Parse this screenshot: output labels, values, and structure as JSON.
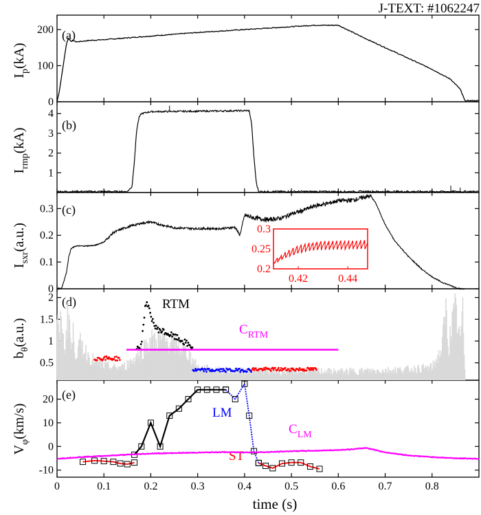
{
  "figure": {
    "shot_label": "J-TEXT: #1062247",
    "x_axis": {
      "label": "time (s)",
      "range": [
        0,
        0.9
      ],
      "ticks": [
        "0",
        "0.1",
        "0.2",
        "0.3",
        "0.4",
        "0.5",
        "0.6",
        "0.7",
        "0.8"
      ]
    },
    "colors": {
      "black": "#000000",
      "red": "#ff0000",
      "blue": "#0000ff",
      "magenta": "#ff00ff",
      "gray": "#d9d9d9"
    }
  },
  "chart_data": [
    {
      "panel": "(a)",
      "type": "line",
      "ylabel_main": "I",
      "ylabel_sub": "p",
      "ylabel_unit": "(kA)",
      "ylim": [
        0,
        240
      ],
      "yticks": [
        "0",
        "100",
        "200"
      ],
      "series": [
        {
          "color": "#000000",
          "x": [
            0.0,
            0.005,
            0.012,
            0.02,
            0.024,
            0.03,
            0.035,
            0.04,
            0.05,
            0.07,
            0.1,
            0.2,
            0.3,
            0.4,
            0.5,
            0.55,
            0.6,
            0.65,
            0.7,
            0.75,
            0.8,
            0.84,
            0.86,
            0.87,
            0.9
          ],
          "y": [
            0,
            30,
            90,
            160,
            175,
            168,
            170,
            166,
            167,
            170,
            172,
            182,
            192,
            200,
            208,
            212,
            212,
            180,
            150,
            120,
            90,
            62,
            35,
            3,
            3
          ]
        }
      ]
    },
    {
      "panel": "(b)",
      "type": "line",
      "ylabel_main": "I",
      "ylabel_sub": "rmp",
      "ylabel_unit": "(kA)",
      "ylim": [
        0,
        4.6
      ],
      "yticks": [
        "1",
        "2",
        "3",
        "4"
      ],
      "series": [
        {
          "color": "#000000",
          "x": [
            0.0,
            0.15,
            0.16,
            0.165,
            0.17,
            0.175,
            0.18,
            0.19,
            0.2,
            0.3,
            0.41,
            0.415,
            0.42,
            0.425,
            0.43,
            0.9
          ],
          "y": [
            0.05,
            0.05,
            0.3,
            1.6,
            3.2,
            3.8,
            4.0,
            4.05,
            4.1,
            4.12,
            4.15,
            3.5,
            1.8,
            0.5,
            0.05,
            0.05
          ]
        }
      ]
    },
    {
      "panel": "(c)",
      "type": "line",
      "ylabel_main": "I",
      "ylabel_sub": "sxr",
      "ylabel_unit": "(a.u.)",
      "ylim": [
        0,
        0.36
      ],
      "yticks": [
        "0",
        "0.1",
        "0.2",
        "0.3"
      ],
      "series": [
        {
          "color": "#000000",
          "x": [
            0.0,
            0.01,
            0.02,
            0.025,
            0.03,
            0.04,
            0.06,
            0.08,
            0.1,
            0.12,
            0.14,
            0.16,
            0.18,
            0.2,
            0.22,
            0.25,
            0.3,
            0.35,
            0.38,
            0.39,
            0.4,
            0.42,
            0.45,
            0.48,
            0.5,
            0.52,
            0.55,
            0.58,
            0.6,
            0.62,
            0.64,
            0.66,
            0.67,
            0.68,
            0.7,
            0.72,
            0.75,
            0.78,
            0.8,
            0.82,
            0.85,
            0.86,
            0.87
          ],
          "y": [
            0,
            0.003,
            0.06,
            0.12,
            0.15,
            0.16,
            0.16,
            0.162,
            0.175,
            0.21,
            0.225,
            0.236,
            0.245,
            0.25,
            0.24,
            0.228,
            0.225,
            0.225,
            0.23,
            0.2,
            0.275,
            0.265,
            0.258,
            0.265,
            0.28,
            0.29,
            0.31,
            0.32,
            0.33,
            0.33,
            0.335,
            0.345,
            0.345,
            0.32,
            0.24,
            0.18,
            0.12,
            0.07,
            0.045,
            0.025,
            0.005,
            0.0,
            0.0
          ]
        }
      ],
      "inset": {
        "type": "line",
        "color": "#ff0000",
        "xlim": [
          0.41,
          0.448
        ],
        "ylim": [
          0.2,
          0.3
        ],
        "xticks": [
          "0.42",
          "0.44"
        ],
        "yticks": [
          "0.2",
          "0.25",
          "0.3"
        ],
        "trend": {
          "x": [
            0.41,
            0.415,
            0.42,
            0.425,
            0.43,
            0.448
          ],
          "y": [
            0.215,
            0.235,
            0.248,
            0.255,
            0.258,
            0.26
          ]
        },
        "sawtooth_period": 0.0016,
        "sawtooth_amplitude": 0.022
      }
    },
    {
      "panel": "(d)",
      "type": "scatter",
      "ylabel_main": "b",
      "ylabel_sub": "θ",
      "ylabel_unit": "(a.u.)",
      "ylim": [
        0.1,
        2.2
      ],
      "yticks": [
        "0.5",
        "1",
        "1.5",
        "2"
      ],
      "annotations": {
        "rtm": "RTM",
        "c_rtm_main": "C",
        "c_rtm_sub": "RTM"
      },
      "background_spectrum": {
        "color": "#d9d9d9",
        "x": [
          0.0,
          0.005,
          0.01,
          0.015,
          0.02,
          0.025,
          0.03,
          0.035,
          0.04,
          0.05,
          0.06,
          0.07,
          0.08,
          0.09,
          0.1,
          0.12,
          0.14,
          0.16,
          0.18,
          0.2,
          0.22,
          0.25,
          0.28,
          0.3,
          0.35,
          0.4,
          0.45,
          0.5,
          0.55,
          0.6,
          0.65,
          0.7,
          0.75,
          0.8,
          0.82,
          0.83,
          0.835,
          0.84,
          0.85,
          0.86,
          0.865,
          0.87
        ],
        "y": [
          2.0,
          1.2,
          2.2,
          0.9,
          1.6,
          2.3,
          1.0,
          1.5,
          0.9,
          1.2,
          1.0,
          0.8,
          0.7,
          0.6,
          0.55,
          0.5,
          0.5,
          0.7,
          1.0,
          1.3,
          1.3,
          1.2,
          0.9,
          0.5,
          0.42,
          0.4,
          0.38,
          0.38,
          0.4,
          0.38,
          0.4,
          0.42,
          0.45,
          0.5,
          1.0,
          2.2,
          1.0,
          1.6,
          2.2,
          1.2,
          2.2,
          0.5
        ]
      },
      "series": [
        {
          "color": "#ff0000",
          "x_range": [
            0.08,
            0.135
          ],
          "base": 0.6,
          "jitter": 0.05
        },
        {
          "color": "#000000",
          "x_range": [
            0.17,
            0.29
          ],
          "trend_x": [
            0.17,
            0.18,
            0.185,
            0.19,
            0.2,
            0.21,
            0.23,
            0.26,
            0.29
          ],
          "trend_y": [
            0.8,
            0.9,
            1.5,
            1.9,
            1.6,
            1.3,
            1.2,
            1.05,
            0.85
          ],
          "jitter": 0.07
        },
        {
          "color": "#0000ff",
          "x_range": [
            0.29,
            0.415
          ],
          "base": 0.33,
          "jitter": 0.04
        },
        {
          "color": "#ff0000",
          "x_range": [
            0.415,
            0.555
          ],
          "base": 0.35,
          "jitter": 0.04
        }
      ],
      "threshold": {
        "color": "#ff00ff",
        "x": [
          0.148,
          0.6
        ],
        "y": 0.8
      }
    },
    {
      "panel": "(e)",
      "type": "line",
      "ylabel_main": "V",
      "ylabel_sub": "φ",
      "ylabel_unit": "(km/s)",
      "ylim": [
        -13,
        28
      ],
      "yticks": [
        "-10",
        "0",
        "10",
        "20"
      ],
      "annotations": {
        "lm": "LM",
        "st": "ST",
        "c_lm_main": "C",
        "c_lm_sub": "LM"
      },
      "series": [
        {
          "color": "#ff0000",
          "marker": "square",
          "x": [
            0.055,
            0.08,
            0.1,
            0.12,
            0.135,
            0.15,
            0.165
          ],
          "y": [
            -6.5,
            -6.0,
            -6.2,
            -6.5,
            -7.2,
            -7.5,
            -6.8
          ]
        },
        {
          "color": "#000000",
          "marker": "square",
          "x": [
            0.165,
            0.18,
            0.2,
            0.22,
            0.24,
            0.26,
            0.28,
            0.3,
            0.32,
            0.34,
            0.36
          ],
          "y": [
            -3.5,
            0.0,
            10.0,
            0.0,
            13.0,
            16.0,
            20.0,
            24.0,
            24.0,
            24.0,
            24.0
          ]
        },
        {
          "color": "#0000ff",
          "marker": "square",
          "x": [
            0.36,
            0.38,
            0.4,
            0.41,
            0.42,
            0.43
          ],
          "y": [
            24.0,
            20.0,
            26.5,
            13.0,
            -2.0,
            -7.0
          ]
        },
        {
          "color": "#ff0000",
          "marker": "square",
          "x": [
            0.43,
            0.445,
            0.46,
            0.48,
            0.5,
            0.52,
            0.54,
            0.56
          ],
          "y": [
            -7.0,
            -8.2,
            -9.2,
            -7.2,
            -6.8,
            -6.8,
            -8.5,
            -9.5
          ]
        },
        {
          "color": "#ff00ff",
          "marker": "none",
          "x": [
            0.0,
            0.05,
            0.1,
            0.15,
            0.2,
            0.25,
            0.3,
            0.35,
            0.4,
            0.45,
            0.5,
            0.55,
            0.6,
            0.63,
            0.66,
            0.7,
            0.75,
            0.8,
            0.85,
            0.9
          ],
          "y": [
            -5.2,
            -4.5,
            -4.0,
            -3.5,
            -3.0,
            -2.8,
            -2.6,
            -2.4,
            -2.5,
            -2.4,
            -2.0,
            -1.8,
            -1.5,
            -1.2,
            -0.6,
            -2.5,
            -3.8,
            -4.5,
            -5.0,
            -5.2
          ]
        }
      ]
    }
  ]
}
